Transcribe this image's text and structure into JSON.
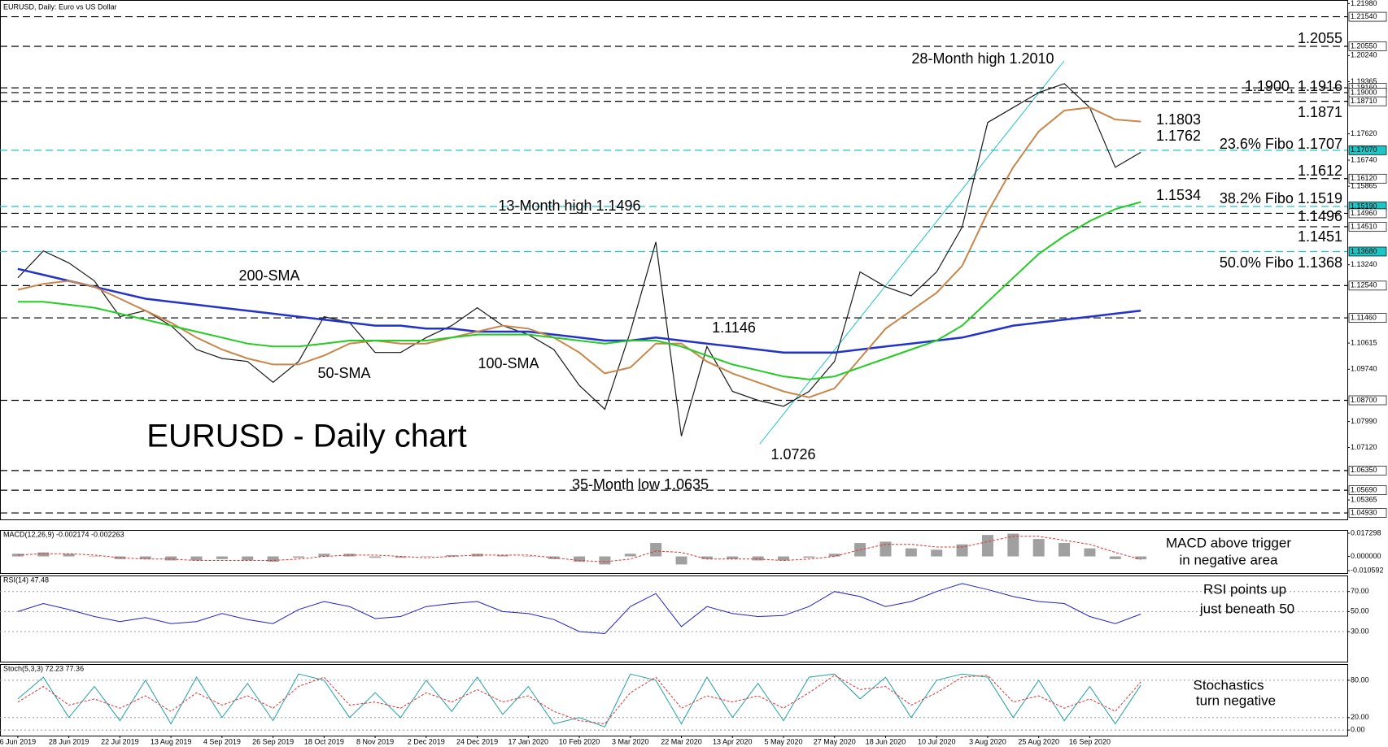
{
  "header": "EURUSD, Daily: Euro vs US Dollar",
  "chart_data": [
    {
      "type": "line",
      "title": "EURUSD - Daily chart",
      "categories": [
        "6 Jun 2019",
        null,
        "28 Jun 2019",
        null,
        "22 Jul 2019",
        null,
        "13 Aug 2019",
        null,
        "4 Sep 2019",
        null,
        "26 Sep 2019",
        null,
        "18 Oct 2019",
        null,
        "8 Nov 2019",
        null,
        "2 Dec 2019",
        null,
        "24 Dec 2019",
        null,
        "17 Jan 2020",
        null,
        "10 Feb 2020",
        null,
        "3 Mar 2020",
        null,
        "22 Mar 2020",
        null,
        "13 Apr 2020",
        null,
        "5 May 2020",
        null,
        "27 May 2020",
        null,
        "18 Jun 2020",
        null,
        "10 Jul 2020",
        null,
        "3 Aug 2020",
        null,
        "25 Aug 2020",
        null,
        "16 Sep 2020",
        null,
        null
      ],
      "ylim": [
        1.0485,
        1.221
      ],
      "yticks": [
        {
          "value": 1.2198,
          "label": "1.21980"
        },
        {
          "value": 1.2024,
          "label": "1.20240"
        },
        1.19365,
        {
          "value": 1.1762,
          "label": "1.17620"
        },
        {
          "value": 1.1674,
          "label": "1.16740"
        },
        1.15865,
        {
          "value": 1.1324,
          "label": "1.13240"
        },
        1.10615,
        {
          "value": 1.0974,
          "label": "1.09740"
        },
        {
          "value": 1.0799,
          "label": "1.07990"
        },
        {
          "value": 1.0712,
          "label": "1.07120"
        },
        1.05365
      ],
      "levels": [
        {
          "value": 1.2154,
          "label": "1.21540",
          "color": "#000000"
        },
        {
          "value": 1.2055,
          "label": "1.20550",
          "color": "#000000"
        },
        {
          "value": 1.1916,
          "label": "1.19160",
          "color": "#000000"
        },
        {
          "value": 1.19,
          "label": "1.19000",
          "color": "#000000"
        },
        {
          "value": 1.1871,
          "label": "1.18710",
          "color": "#000000"
        },
        {
          "value": 1.1707,
          "label": "1.17070",
          "color": "#1fc4c4"
        },
        {
          "value": 1.1612,
          "label": "1.16120",
          "color": "#000000"
        },
        {
          "value": 1.1519,
          "label": "1.15190",
          "color": "#1fc4c4"
        },
        {
          "value": 1.1496,
          "label": "1.14960",
          "color": "#000000"
        },
        {
          "value": 1.1451,
          "label": "1.14510",
          "color": "#000000"
        },
        {
          "value": 1.1368,
          "label": "1.13680",
          "color": "#1fc4c4"
        },
        {
          "value": 1.1254,
          "label": "1.12540",
          "color": "#000000"
        },
        {
          "value": 1.1146,
          "label": "1.11460",
          "color": "#000000"
        },
        {
          "value": 1.087,
          "label": "1.08700",
          "color": "#000000"
        },
        {
          "value": 1.0635,
          "label": "1.06350",
          "color": "#000000"
        },
        {
          "value": 1.0569,
          "label": "1.05690",
          "color": "#000000"
        },
        {
          "value": 1.0493,
          "label": "1.04930",
          "color": "#000000"
        }
      ],
      "series": [
        {
          "color": "#1a1a1a",
          "values": [
            1.128,
            1.137,
            1.133,
            1.127,
            1.115,
            1.117,
            1.112,
            1.104,
            1.101,
            1.1,
            1.093,
            1.1,
            1.115,
            1.113,
            1.103,
            1.103,
            1.108,
            1.112,
            1.118,
            1.112,
            1.109,
            1.104,
            1.092,
            1.084,
            1.11,
            1.14,
            1.075,
            1.105,
            1.09,
            1.087,
            1.085,
            1.09,
            1.1,
            1.13,
            1.125,
            1.122,
            1.13,
            1.145,
            1.18,
            1.185,
            1.19,
            1.193,
            1.185,
            1.165,
            1.17
          ]
        },
        {
          "color": "#2233cc",
          "values": [
            1.131,
            1.129,
            1.127,
            1.125,
            1.123,
            1.121,
            1.12,
            1.119,
            1.118,
            1.117,
            1.116,
            1.115,
            1.114,
            1.113,
            1.112,
            1.112,
            1.111,
            1.111,
            1.11,
            1.11,
            1.11,
            1.109,
            1.108,
            1.107,
            1.107,
            1.108,
            1.107,
            1.106,
            1.105,
            1.104,
            1.103,
            1.103,
            1.103,
            1.104,
            1.105,
            1.106,
            1.107,
            1.108,
            1.11,
            1.112,
            1.113,
            1.114,
            1.115,
            1.116,
            1.117
          ]
        },
        {
          "color": "#c8864a",
          "values": [
            1.124,
            1.126,
            1.127,
            1.125,
            1.121,
            1.117,
            1.113,
            1.108,
            1.104,
            1.101,
            1.099,
            1.099,
            1.102,
            1.106,
            1.107,
            1.106,
            1.106,
            1.108,
            1.11,
            1.112,
            1.111,
            1.108,
            1.103,
            1.096,
            1.098,
            1.106,
            1.106,
            1.1,
            1.096,
            1.093,
            1.09,
            1.088,
            1.091,
            1.101,
            1.111,
            1.117,
            1.123,
            1.132,
            1.15,
            1.165,
            1.177,
            1.184,
            1.185,
            1.181,
            1.1803
          ]
        },
        {
          "color": "#22cc22",
          "values": [
            1.12,
            1.12,
            1.119,
            1.118,
            1.116,
            1.114,
            1.112,
            1.11,
            1.108,
            1.106,
            1.105,
            1.105,
            1.106,
            1.107,
            1.107,
            1.107,
            1.107,
            1.108,
            1.109,
            1.109,
            1.109,
            1.108,
            1.107,
            1.106,
            1.107,
            1.107,
            1.105,
            1.102,
            1.099,
            1.097,
            1.095,
            1.094,
            1.095,
            1.098,
            1.101,
            1.104,
            1.107,
            1.112,
            1.12,
            1.128,
            1.136,
            1.142,
            1.147,
            1.151,
            1.1534
          ]
        }
      ],
      "annotations": [
        {
          "text": "28-Month high 1.2010",
          "color": "#000000"
        },
        {
          "text": "13-Month high 1.1496",
          "color": "#000000"
        },
        {
          "text": "1.1146",
          "color": "#000000"
        },
        {
          "text": "1.0726",
          "color": "#000000"
        },
        {
          "text": "35-Month low 1.0635",
          "color": "#000000"
        },
        {
          "text": "200-SMA",
          "color": "#2233cc"
        },
        {
          "text": "50-SMA",
          "color": "#c8864a"
        },
        {
          "text": "100-SMA",
          "color": "#22cc22"
        },
        {
          "text": "1.2055",
          "color": "#2233dd"
        },
        {
          "text": "1.1900, 1.1916",
          "color": "#2233dd"
        },
        {
          "text": "1.1871",
          "color": "#2233dd"
        },
        {
          "text": "1.1803",
          "color": "#c8864a"
        },
        {
          "text": "1.1762",
          "color": "#9a8ce0"
        },
        {
          "text": "23.6% Fibo 1.1707",
          "color": "#1fc4c4"
        },
        {
          "text": "1.1612",
          "color": "#e02020"
        },
        {
          "text": "1.1534",
          "color": "#22cc22"
        },
        {
          "text": "38.2% Fibo 1.1519",
          "color": "#1fc4c4"
        },
        {
          "text": "1.1496",
          "color": "#e02020"
        },
        {
          "text": "1.1451",
          "color": "#e02020"
        },
        {
          "text": "50.0% Fibo 1.1368",
          "color": "#1fc4c4"
        }
      ]
    },
    {
      "type": "bar",
      "title": "MACD(12,26,9) -0.002174 -0.002263",
      "comment": [
        "MACD above trigger",
        "in negative area"
      ],
      "ylim": [
        -0.010592,
        0.017298
      ],
      "yticks": [
        0.017298,
        {
          "value": 0,
          "label": "0.000000"
        },
        -0.010592
      ],
      "series": [
        {
          "type": "bar",
          "color": "#a0a0a0",
          "values": [
            0.002,
            0.003,
            0.002,
            0.0,
            -0.002,
            -0.002,
            -0.003,
            -0.003,
            -0.002,
            -0.003,
            -0.004,
            -0.001,
            0.002,
            0.002,
            -0.001,
            -0.001,
            0.0,
            0.001,
            0.002,
            0.001,
            0.0,
            -0.002,
            -0.004,
            -0.006,
            0.002,
            0.01,
            -0.006,
            -0.002,
            -0.002,
            -0.003,
            -0.003,
            -0.001,
            0.002,
            0.01,
            0.011,
            0.006,
            0.005,
            0.009,
            0.016,
            0.017,
            0.013,
            0.01,
            0.006,
            -0.002,
            -0.002174
          ]
        },
        {
          "type": "line",
          "color": "#e03030",
          "values": [
            0.001,
            0.002,
            0.002,
            0.001,
            -0.001,
            -0.002,
            -0.002,
            -0.003,
            -0.003,
            -0.003,
            -0.003,
            -0.002,
            0.0,
            0.001,
            0.001,
            0.0,
            -0.001,
            0.0,
            0.001,
            0.001,
            0.001,
            -0.001,
            -0.003,
            -0.004,
            -0.002,
            0.004,
            0.003,
            -0.002,
            -0.002,
            -0.002,
            -0.003,
            -0.002,
            0.0,
            0.005,
            0.009,
            0.009,
            0.007,
            0.007,
            0.011,
            0.015,
            0.015,
            0.012,
            0.009,
            0.003,
            -0.002263
          ]
        }
      ]
    },
    {
      "type": "line",
      "title": "RSI(14) 47.48",
      "comment": [
        "RSI points up",
        "just beneath 50"
      ],
      "ylim": [
        0,
        86
      ],
      "yticks": [
        {
          "value": 30,
          "label": "30.00"
        },
        {
          "value": 50,
          "label": "50.00"
        },
        {
          "value": 70,
          "label": "70.00"
        }
      ],
      "grid": true,
      "series": [
        {
          "type": "line",
          "color": "#2020cc",
          "values": [
            50,
            58,
            52,
            45,
            40,
            44,
            38,
            40,
            48,
            42,
            38,
            52,
            60,
            55,
            43,
            45,
            55,
            58,
            60,
            50,
            48,
            42,
            30,
            28,
            55,
            68,
            35,
            55,
            48,
            45,
            46,
            55,
            70,
            65,
            55,
            60,
            70,
            78,
            72,
            65,
            60,
            58,
            45,
            38,
            47.48
          ]
        }
      ]
    },
    {
      "type": "line",
      "title": "Stoch(5,3,3) 72.23 77.36",
      "comment": [
        "Stochastics",
        "turn negative"
      ],
      "ylim": [
        -9,
        106
      ],
      "yticks": [
        {
          "value": 0,
          "label": "0.00"
        },
        {
          "value": 20,
          "label": "20.00"
        },
        {
          "value": 80,
          "label": "80.00"
        }
      ],
      "grid": true,
      "series": [
        {
          "type": "line",
          "color": "#20a0a0",
          "values": [
            50,
            85,
            20,
            70,
            15,
            80,
            10,
            85,
            20,
            75,
            15,
            90,
            80,
            20,
            60,
            20,
            80,
            30,
            85,
            25,
            70,
            10,
            20,
            5,
            90,
            80,
            10,
            85,
            20,
            75,
            15,
            85,
            90,
            50,
            85,
            20,
            80,
            90,
            85,
            20,
            80,
            15,
            70,
            10,
            72.23
          ]
        },
        {
          "type": "line",
          "color": "#e03030",
          "values": [
            45,
            70,
            40,
            50,
            35,
            55,
            30,
            60,
            40,
            55,
            35,
            70,
            85,
            40,
            45,
            35,
            60,
            45,
            65,
            45,
            55,
            30,
            15,
            10,
            60,
            85,
            35,
            55,
            45,
            55,
            35,
            60,
            88,
            65,
            70,
            40,
            60,
            85,
            88,
            45,
            55,
            35,
            50,
            30,
            77.36
          ]
        }
      ]
    }
  ]
}
